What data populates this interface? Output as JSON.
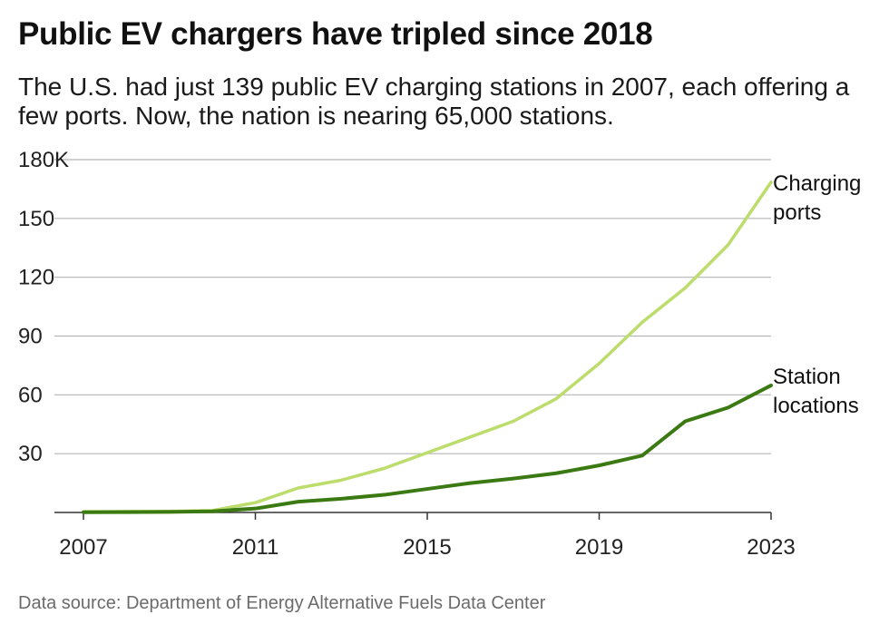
{
  "title": "Public EV chargers have tripled since 2018",
  "subtitle": "The U.S. had just 139 public EV charging stations in 2007, each offering a few ports. Now, the nation is nearing 65,000 stations.",
  "source": "Data source: Department of Energy Alternative Fuels Data Center",
  "chart_data": {
    "type": "line",
    "x": [
      2007,
      2008,
      2009,
      2010,
      2011,
      2012,
      2013,
      2014,
      2015,
      2016,
      2017,
      2018,
      2019,
      2020,
      2021,
      2022,
      2023
    ],
    "xticks": [
      2007,
      2011,
      2015,
      2019,
      2023
    ],
    "xtick_labels": [
      "2007",
      "2011",
      "2015",
      "2019",
      "2023"
    ],
    "yticks": [
      0,
      30,
      60,
      90,
      120,
      150,
      180
    ],
    "ytick_labels": [
      "",
      "30",
      "60",
      "90",
      "120",
      "150",
      "180K"
    ],
    "ylim": [
      0,
      180
    ],
    "xlim": [
      2007,
      2023
    ],
    "grid": true,
    "units": "thousands",
    "series": [
      {
        "name_lines": [
          "Charging",
          "ports"
        ],
        "color": "#bcdd6c",
        "values": [
          0.4,
          0.5,
          0.6,
          1.0,
          5.0,
          12.5,
          16.5,
          22.5,
          30.5,
          38.5,
          46.5,
          58.0,
          76.0,
          97.0,
          114.5,
          136.5,
          168.5
        ]
      },
      {
        "name_lines": [
          "Station",
          "locations"
        ],
        "color": "#3b7a12",
        "values": [
          0.1,
          0.2,
          0.3,
          0.6,
          2.0,
          5.5,
          7.0,
          9.0,
          12.0,
          15.0,
          17.3,
          20.0,
          24.0,
          29.0,
          46.5,
          53.5,
          64.8
        ]
      }
    ]
  }
}
